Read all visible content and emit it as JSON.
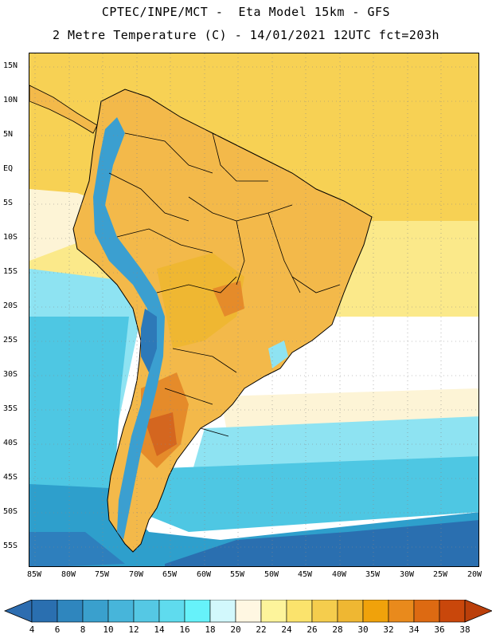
{
  "header": {
    "line1": "CPTEC/INPE/MCT -  Eta Model 15km - GFS",
    "line2": "2 Metre Temperature (C) - 14/01/2021 12UTC fct=203h"
  },
  "map": {
    "latitude_labels": [
      "15N",
      "10N",
      "5N",
      "EQ",
      "5S",
      "10S",
      "15S",
      "20S",
      "25S",
      "30S",
      "35S",
      "40S",
      "45S",
      "50S",
      "55S"
    ],
    "longitude_labels": [
      "85W",
      "80W",
      "75W",
      "70W",
      "65W",
      "60W",
      "55W",
      "50W",
      "45W",
      "40W",
      "35W",
      "30W",
      "25W",
      "20W"
    ],
    "region": "South America",
    "ocean_colors": {
      "tropical_north": "#f7d154",
      "subtropical": "#fbe98a",
      "pale": "#fdf4d6",
      "cool_pacific": "#8ee3f2",
      "cold": "#4ec7e3",
      "colder": "#2e9fcc",
      "coldest": "#2a6fb0"
    },
    "land_colors": {
      "warm": "#f3b94a",
      "hot": "#e58b2a",
      "hottest": "#d4661f",
      "andes": "#3b9fd0",
      "andes_high": "#2d79b8"
    }
  },
  "colorbar": {
    "labels": [
      "4",
      "6",
      "8",
      "10",
      "12",
      "14",
      "16",
      "18",
      "20",
      "22",
      "24",
      "26",
      "28",
      "30",
      "32",
      "34",
      "36",
      "38"
    ],
    "colors": [
      "#2a6fb0",
      "#2f86be",
      "#3aa0cd",
      "#47b5da",
      "#55c8e4",
      "#5fdbee",
      "#66f2fa",
      "#d2f8fc",
      "#fff7e2",
      "#fdf49b",
      "#fbe36c",
      "#f5cd4d",
      "#efb732",
      "#f0a20b",
      "#e98a1c",
      "#dd6a12",
      "#c9470b"
    ],
    "left_arrow_color": "#2d6db0",
    "right_arrow_color": "#bb3f0a"
  }
}
